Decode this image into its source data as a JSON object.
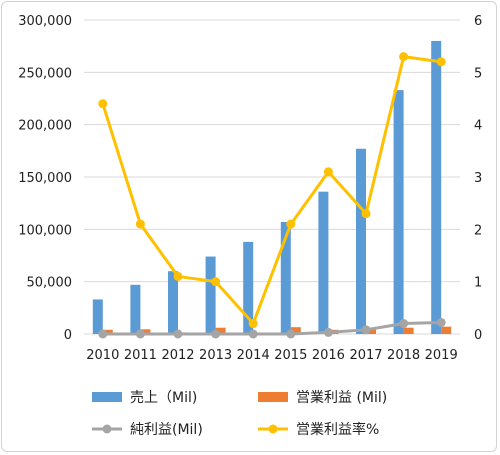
{
  "chart_data": {
    "type": "bar",
    "categories": [
      "2010",
      "2011",
      "2012",
      "2013",
      "2014",
      "2015",
      "2016",
      "2017",
      "2018",
      "2019"
    ],
    "left_axis": {
      "ylim": [
        0,
        300000
      ],
      "ticks": [
        "0",
        "50,000",
        "100,000",
        "150,000",
        "200,000",
        "250,000",
        "300,000"
      ]
    },
    "right_axis": {
      "ylim": [
        0,
        6
      ],
      "ticks": [
        "0",
        "1",
        "2",
        "3",
        "4",
        "5",
        "6"
      ]
    },
    "series": [
      {
        "name": "売上（Mil)",
        "kind": "bar",
        "axis": "left",
        "color": "#5b9bd5",
        "values": [
          33000,
          47000,
          60000,
          74000,
          88000,
          107000,
          136000,
          177000,
          233000,
          280000
        ]
      },
      {
        "name": "営業利益 (Mil)",
        "kind": "bar",
        "axis": "left",
        "color": "#ed7d31",
        "values": [
          4000,
          4500,
          1500,
          6000,
          500,
          6500,
          4000,
          5000,
          6000,
          7000
        ]
      },
      {
        "name": "純利益(Mil)",
        "kind": "line",
        "axis": "left",
        "color": "#a5a5a5",
        "values": [
          0,
          0,
          0,
          0,
          0,
          0,
          1500,
          4000,
          10000,
          11000
        ]
      },
      {
        "name": "営業利益率%",
        "kind": "line",
        "axis": "right",
        "color": "#ffc000",
        "values": [
          4.4,
          2.1,
          1.1,
          1.0,
          0.2,
          2.1,
          3.1,
          2.3,
          5.3,
          5.2
        ]
      }
    ],
    "grid": true,
    "legend_position": "bottom"
  }
}
